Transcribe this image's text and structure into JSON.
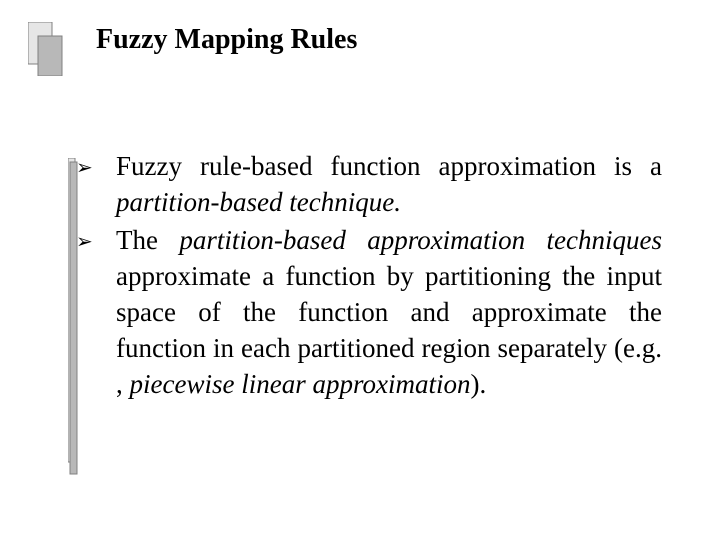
{
  "slide": {
    "title": "Fuzzy Mapping Rules",
    "title_fontsize": 28,
    "title_color": "#000000",
    "bullets": [
      {
        "runs": [
          {
            "text": "Fuzzy rule-based function approximation is a ",
            "italic": false
          },
          {
            "text": "partition-based technique.",
            "italic": true
          }
        ]
      },
      {
        "runs": [
          {
            "text": "The ",
            "italic": false
          },
          {
            "text": "partition-based approximation techniques",
            "italic": true
          },
          {
            "text": " approximate a function by partitioning the input space of the function and approximate the function in each partitioned region separately (e.g. , ",
            "italic": false
          },
          {
            "text": "piecewise linear approximation",
            "italic": true
          },
          {
            "text": ").",
            "italic": false
          }
        ]
      }
    ],
    "bullet_glyph": "➢",
    "body_fontsize": 27,
    "body_line_height": 36,
    "bullet_color": "#000000",
    "body_text_color": "#000000",
    "decoration": {
      "outer_fill": "#e6e6e6",
      "inner_fill": "#b8b8b8",
      "stroke": "#808080"
    },
    "background_color": "#ffffff"
  }
}
